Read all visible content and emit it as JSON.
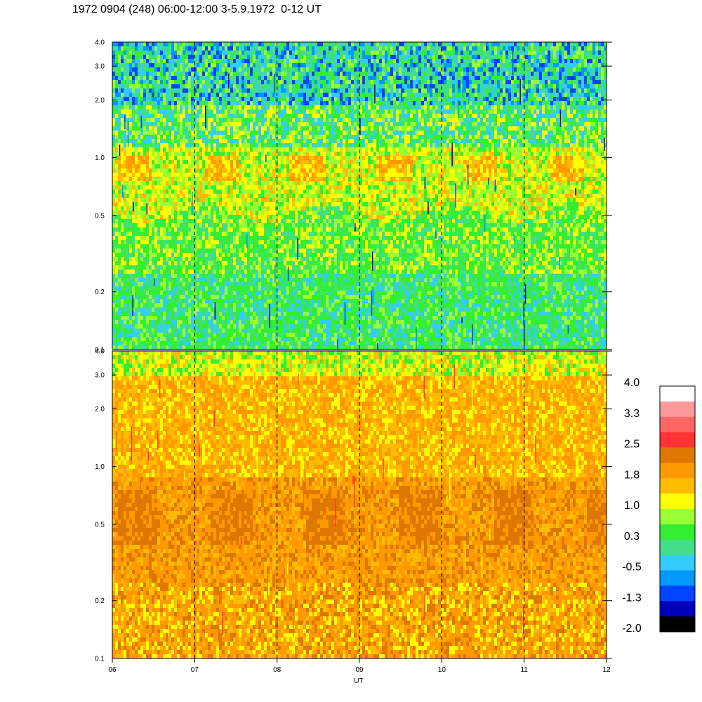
{
  "chart_data": {
    "type": "heatmap",
    "title": "1972 0904 (248) 06:00-12:00 3-5.9.1972  0-12 UT",
    "xlabel": "UT",
    "x_ticks": [
      "06",
      "07",
      "08",
      "09",
      "10",
      "11",
      "12"
    ],
    "xlim": [
      6,
      12
    ],
    "y_scale": "log",
    "ylim": [
      0.1,
      4.0
    ],
    "y_ticks": [
      {
        "value": 0.1,
        "label": "0.1"
      },
      {
        "value": 0.2,
        "label": "0.2"
      },
      {
        "value": 0.5,
        "label": "0.5"
      },
      {
        "value": 1.0,
        "label": "1.0"
      },
      {
        "value": 2.0,
        "label": "2.0"
      },
      {
        "value": 3.0,
        "label": "3.0"
      },
      {
        "value": 4.0,
        "label": "4.0"
      }
    ],
    "dashed_vertical_lines_at": [
      7,
      8,
      9,
      10,
      11
    ],
    "panels": [
      {
        "id": "upper",
        "dominant_levels": "green / cyan at low values, yellow band near 0.6-1.0"
      },
      {
        "id": "lower",
        "dominant_levels": "orange / dark orange, yellow near top"
      }
    ],
    "colorbar": {
      "labels": [
        "4.0",
        "3.3",
        "2.5",
        "1.8",
        "1.0",
        "0.3",
        "-0.5",
        "-1.3",
        "-2.0"
      ],
      "colors": [
        "#ffffff",
        "#ff9999",
        "#ff6666",
        "#ff3333",
        "#dd7700",
        "#ff9900",
        "#ffbb00",
        "#ffff00",
        "#99ff33",
        "#33ee33",
        "#44dd88",
        "#33ccff",
        "#0099ff",
        "#0044ff",
        "#0000bb",
        "#000000"
      ]
    },
    "palette": {
      "black": "#000000",
      "navy": "#0000bb",
      "blue": "#0044ff",
      "azure": "#0099ff",
      "cyan": "#33ccff",
      "teal": "#44dd88",
      "green": "#33ee33",
      "lime": "#99ff33",
      "yellow": "#ffff00",
      "gold": "#ffbb00",
      "orange": "#ff9900",
      "darkorange": "#dd7700",
      "red": "#ff3333"
    }
  }
}
